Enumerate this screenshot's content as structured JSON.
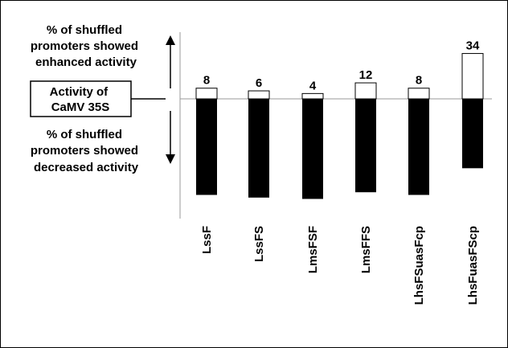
{
  "chart_data": {
    "type": "bar",
    "categories": [
      "LssF",
      "LssFS",
      "LmsFSF",
      "LmsFFS",
      "LhsFSuasFcp",
      "LhsFuasFScp"
    ],
    "series": [
      {
        "values": [
          8,
          6,
          4,
          12,
          8,
          34
        ],
        "color": "#ffffff"
      },
      {
        "values": [
          -72,
          -74,
          -75,
          -70,
          -72,
          -52
        ],
        "color": "#000000"
      }
    ],
    "data_labels": [
      "8",
      "6",
      "4",
      "12",
      "8",
      "34"
    ],
    "annotations": {
      "enhanced": [
        "% of shuffled",
        "promoters showed",
        "enhanced activity"
      ],
      "baseline": [
        "Activity of",
        "CaMV 35S"
      ],
      "decreased": [
        "% of shuffled",
        "promoters showed",
        "decreased  activity"
      ]
    },
    "baseline_value": 0,
    "ylim": [
      -82,
      47
    ],
    "grid": false
  }
}
